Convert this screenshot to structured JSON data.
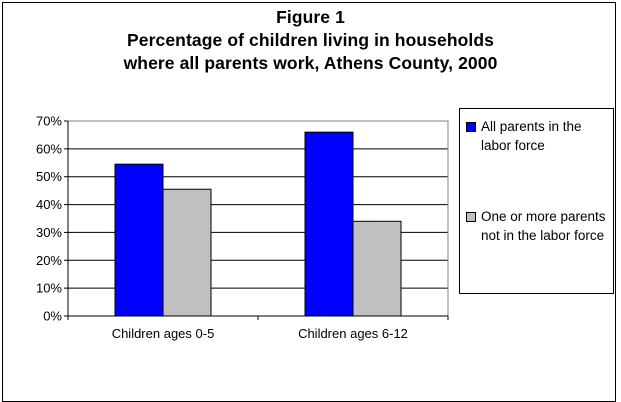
{
  "chart_data": {
    "type": "bar",
    "title_lines": [
      "Figure 1",
      "Percentage of children living in households",
      "where all parents work, Athens County, 2000"
    ],
    "categories": [
      "Children ages 0-5",
      "Children ages 6-12"
    ],
    "series": [
      {
        "name": "All parents in the labor force",
        "values": [
          54.5,
          66
        ],
        "color": "#0000ff"
      },
      {
        "name": "One or more parents not in the labor force",
        "values": [
          45.5,
          34
        ],
        "color": "#c0c0c0"
      }
    ],
    "yticks": [
      "0%",
      "10%",
      "20%",
      "30%",
      "40%",
      "50%",
      "60%",
      "70%"
    ],
    "ylim": [
      0,
      70
    ],
    "grid": true,
    "legend_position": "right"
  }
}
